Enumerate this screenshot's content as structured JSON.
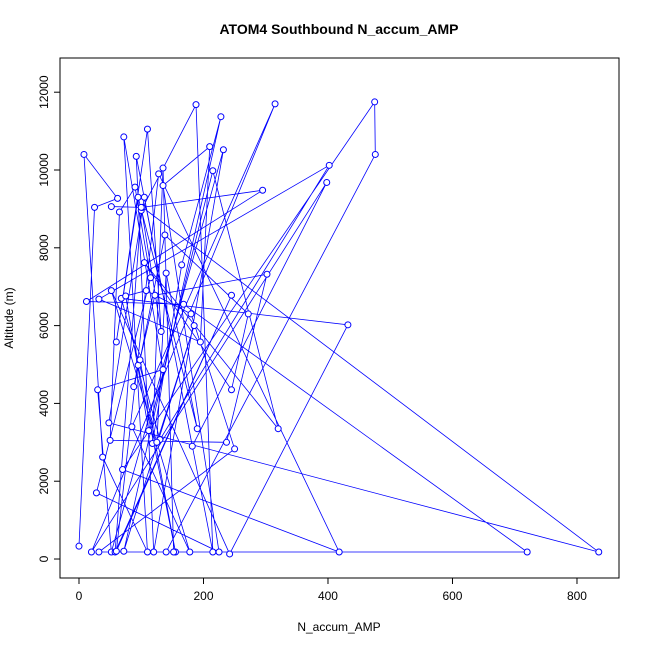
{
  "chart_data": {
    "type": "scatter",
    "mode": "points-lines",
    "title": "ATOM4 Southbound N_accum_AMP",
    "x_label": "N_accum_AMP",
    "y_label": "Altitude (m)",
    "color": "#0000ff",
    "x": [
      0,
      25,
      62,
      8,
      38,
      110,
      72,
      135,
      30,
      52,
      232,
      120,
      92,
      215,
      188,
      100,
      58,
      245,
      60,
      128,
      418,
      70,
      475,
      476,
      140,
      720,
      168,
      12,
      295,
      102,
      835,
      48,
      105,
      182,
      398,
      20,
      315,
      85,
      178,
      52,
      242,
      432,
      68,
      130,
      402,
      32,
      195,
      210,
      135,
      225,
      28,
      115,
      90,
      65,
      50,
      237,
      302,
      122,
      88,
      95,
      155,
      98,
      138,
      272,
      245,
      105,
      320,
      215,
      112,
      75,
      108,
      180,
      250,
      32,
      152,
      135,
      118,
      165,
      228,
      72,
      185,
      125,
      140,
      190,
      95,
      60,
      110,
      132,
      100,
      52
    ],
    "y": [
      330,
      9040,
      9270,
      10400,
      2620,
      180,
      10850,
      4870,
      4350,
      180,
      10520,
      180,
      10350,
      180,
      11680,
      8960,
      180,
      6780,
      200,
      9900,
      180,
      2300,
      11750,
      10400,
      180,
      180,
      6550,
      6620,
      9480,
      9040,
      180,
      3500,
      9300,
      2900,
      9680,
      180,
      11700,
      3400,
      180,
      6900,
      130,
      6020,
      6700,
      3070,
      10120,
      6680,
      5580,
      10600,
      9600,
      180,
      1700,
      7230,
      9560,
      8920,
      3050,
      3000,
      7320,
      6780,
      4430,
      4980,
      180,
      5120,
      8330,
      6300,
      4350,
      7620,
      3350,
      9980,
      3300,
      6760,
      6900,
      6300,
      2830,
      180,
      180,
      10050,
      2970,
      7560,
      11370,
      200,
      6000,
      3000,
      7350,
      3350,
      9300,
      5580,
      11050,
      5850,
      9040,
      9060
    ],
    "xlim": [
      -30.5,
      867.5
    ],
    "ylim": [
      -488,
      12879
    ],
    "xticks": [
      0,
      200,
      400,
      600,
      800
    ],
    "yticks": [
      0,
      2000,
      4000,
      6000,
      8000,
      10000,
      12000
    ]
  }
}
